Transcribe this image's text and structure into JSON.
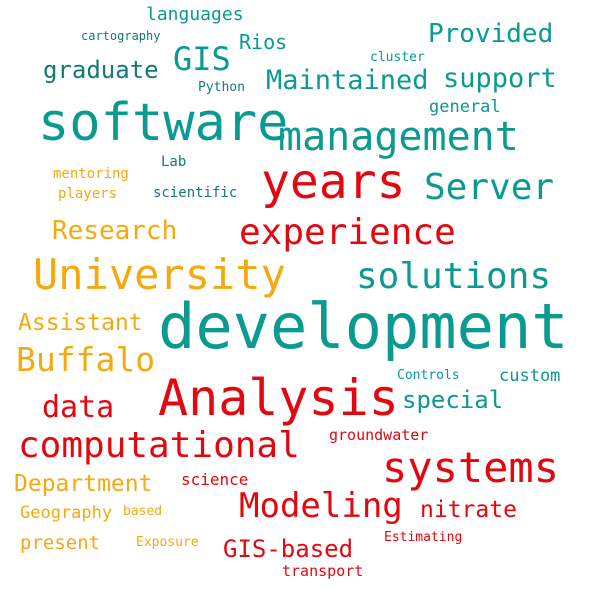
{
  "colors": {
    "teal": "#0a9a90",
    "red": "#e3070f",
    "orange": "#f5a910",
    "dark_teal": "#127a74",
    "background": "#ffffff"
  },
  "words": [
    {
      "text": "languages",
      "color": "teal"
    },
    {
      "text": "cartography",
      "color": "dark_teal"
    },
    {
      "text": "Rios",
      "color": "teal"
    },
    {
      "text": "Provided",
      "color": "teal"
    },
    {
      "text": "cluster",
      "color": "teal"
    },
    {
      "text": "GIS",
      "color": "teal"
    },
    {
      "text": "graduate",
      "color": "dark_teal"
    },
    {
      "text": "Maintained",
      "color": "teal"
    },
    {
      "text": "support",
      "color": "teal"
    },
    {
      "text": "Python",
      "color": "dark_teal"
    },
    {
      "text": "general",
      "color": "teal"
    },
    {
      "text": "software",
      "color": "teal"
    },
    {
      "text": "management",
      "color": "teal"
    },
    {
      "text": "Lab",
      "color": "dark_teal"
    },
    {
      "text": "mentoring",
      "color": "orange"
    },
    {
      "text": "years",
      "color": "red"
    },
    {
      "text": "Server",
      "color": "teal"
    },
    {
      "text": "players",
      "color": "orange"
    },
    {
      "text": "scientific",
      "color": "dark_teal"
    },
    {
      "text": "Research",
      "color": "orange"
    },
    {
      "text": "experience",
      "color": "red"
    },
    {
      "text": "University",
      "color": "orange"
    },
    {
      "text": "solutions",
      "color": "teal"
    },
    {
      "text": "Assistant",
      "color": "orange"
    },
    {
      "text": "development",
      "color": "teal"
    },
    {
      "text": "Buffalo",
      "color": "orange"
    },
    {
      "text": "Controls",
      "color": "teal"
    },
    {
      "text": "custom",
      "color": "teal"
    },
    {
      "text": "Analysis",
      "color": "red"
    },
    {
      "text": "data",
      "color": "red"
    },
    {
      "text": "special",
      "color": "teal"
    },
    {
      "text": "computational",
      "color": "red"
    },
    {
      "text": "groundwater",
      "color": "red"
    },
    {
      "text": "systems",
      "color": "red"
    },
    {
      "text": "Department",
      "color": "orange"
    },
    {
      "text": "science",
      "color": "red"
    },
    {
      "text": "Modeling",
      "color": "red"
    },
    {
      "text": "Geography",
      "color": "orange"
    },
    {
      "text": "based",
      "color": "orange"
    },
    {
      "text": "nitrate",
      "color": "red"
    },
    {
      "text": "Estimating",
      "color": "red"
    },
    {
      "text": "present",
      "color": "orange"
    },
    {
      "text": "Exposure",
      "color": "orange"
    },
    {
      "text": "GIS-based",
      "color": "red"
    },
    {
      "text": "transport",
      "color": "red"
    }
  ]
}
